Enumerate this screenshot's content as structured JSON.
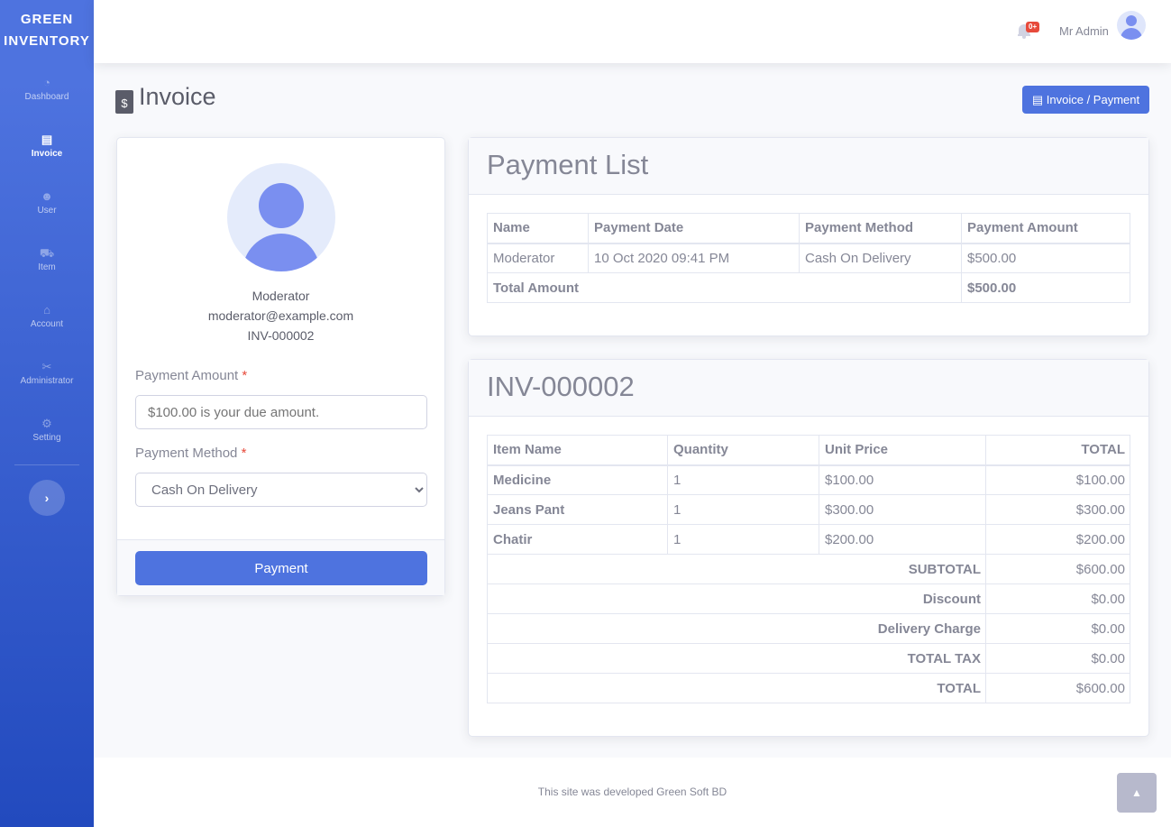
{
  "brand": {
    "line1": "GREEN",
    "line2": "INVENTORY"
  },
  "sidebar": {
    "items": [
      {
        "label": "Dashboard",
        "icon": "◔"
      },
      {
        "label": "Invoice",
        "icon": "▤"
      },
      {
        "label": "User",
        "icon": "☻"
      },
      {
        "label": "Item",
        "icon": "⛟"
      },
      {
        "label": "Account",
        "icon": "⌂"
      },
      {
        "label": "Administrator",
        "icon": "✂"
      },
      {
        "label": "Setting",
        "icon": "⚙"
      }
    ],
    "toggle": "›"
  },
  "topbar": {
    "badge": "0+",
    "user": "Mr Admin",
    "bell": "🔔"
  },
  "page": {
    "title": "Invoice",
    "header_button": "Invoice / Payment"
  },
  "customer": {
    "name": "Moderator",
    "email": "moderator@example.com",
    "invoice": "INV-000002"
  },
  "form": {
    "amount_label": "Payment Amount",
    "amount_placeholder": "$100.00 is your due amount.",
    "method_label": "Payment Method",
    "method_value": "Cash On Delivery",
    "required": "*",
    "submit": "Payment"
  },
  "payment_list": {
    "title": "Payment List",
    "headers": [
      "Name",
      "Payment Date",
      "Payment Method",
      "Payment Amount"
    ],
    "rows": [
      [
        "Moderator",
        "10 Oct 2020 09:41 PM",
        "Cash On Delivery",
        "$500.00"
      ]
    ],
    "total_label": "Total Amount",
    "total": "$500.00"
  },
  "invoice": {
    "title": "INV-000002",
    "headers": [
      "Item Name",
      "Quantity",
      "Unit Price",
      "TOTAL"
    ],
    "rows": [
      [
        "Medicine",
        "1",
        "$100.00",
        "$100.00"
      ],
      [
        "Jeans Pant",
        "1",
        "$300.00",
        "$300.00"
      ],
      [
        "Chatir",
        "1",
        "$200.00",
        "$200.00"
      ]
    ],
    "summary": [
      [
        "SUBTOTAL",
        "$600.00"
      ],
      [
        "Discount",
        "$0.00"
      ],
      [
        "Delivery Charge",
        "$0.00"
      ],
      [
        "TOTAL TAX",
        "$0.00"
      ],
      [
        "TOTAL",
        "$600.00"
      ]
    ]
  },
  "footer": {
    "text": "This site was developed Green Soft BD",
    "scroll_top": "▲"
  }
}
